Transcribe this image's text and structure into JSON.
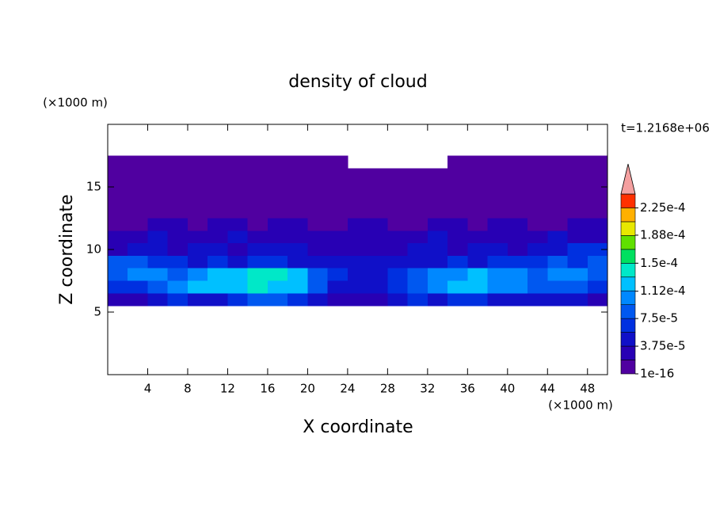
{
  "chart_data": {
    "type": "contour",
    "title": "density of cloud",
    "xlabel": "X coordinate",
    "ylabel": "Z coordinate",
    "xunit": "(×1000 m)",
    "yunit": "(×1000 m)",
    "annotation": "t=1.2168e+06",
    "xlim": [
      0,
      50
    ],
    "ylim": [
      0,
      20
    ],
    "xticks": [
      4,
      8,
      12,
      16,
      20,
      24,
      28,
      32,
      36,
      40,
      44,
      48
    ],
    "yticks": [
      5,
      10,
      15
    ],
    "x": [
      1,
      3,
      5,
      7,
      9,
      11,
      13,
      15,
      17,
      19,
      21,
      23,
      25,
      27,
      29,
      31,
      33,
      35,
      37,
      39,
      41,
      43,
      45,
      47,
      49
    ],
    "y": [
      17,
      16,
      15,
      14,
      13,
      12,
      11,
      10,
      9,
      8,
      7,
      6
    ],
    "z": [
      [
        5e-06,
        5e-06,
        5e-06,
        5e-06,
        5e-06,
        5e-06,
        5e-06,
        5e-06,
        5e-06,
        5e-06,
        5e-06,
        5e-06,
        null,
        null,
        null,
        null,
        null,
        5e-06,
        5e-06,
        5e-06,
        5e-06,
        5e-06,
        5e-06,
        5e-06,
        5e-06
      ],
      [
        5e-06,
        5e-06,
        5e-06,
        5e-06,
        5e-06,
        5e-06,
        5e-06,
        5e-06,
        5e-06,
        5e-06,
        5e-06,
        5e-06,
        5e-06,
        5e-06,
        5e-06,
        5e-06,
        5e-06,
        5e-06,
        5e-06,
        5e-06,
        5e-06,
        5e-06,
        5e-06,
        5e-06,
        5e-06
      ],
      [
        5e-06,
        5e-06,
        5e-06,
        5e-06,
        5e-06,
        5e-06,
        5e-06,
        5e-06,
        5e-06,
        5e-06,
        5e-06,
        5e-06,
        5e-06,
        5e-06,
        5e-06,
        5e-06,
        5e-06,
        5e-06,
        5e-06,
        5e-06,
        5e-06,
        5e-06,
        5e-06,
        5e-06,
        5e-06
      ],
      [
        5e-06,
        5e-06,
        5e-06,
        5e-06,
        5e-06,
        5e-06,
        5e-06,
        5e-06,
        5e-06,
        5e-06,
        5e-06,
        5e-06,
        5e-06,
        5e-06,
        5e-06,
        5e-06,
        5e-06,
        5e-06,
        5e-06,
        5e-06,
        5e-06,
        5e-06,
        5e-06,
        5e-06,
        5e-06
      ],
      [
        5e-06,
        1e-05,
        5e-06,
        5e-06,
        1e-05,
        5e-06,
        5e-06,
        1e-05,
        5e-06,
        5e-06,
        5e-06,
        1e-05,
        5e-06,
        5e-06,
        1e-05,
        5e-06,
        5e-06,
        5e-06,
        1e-05,
        5e-06,
        5e-06,
        1e-05,
        5e-06,
        5e-06,
        1e-05
      ],
      [
        1e-05,
        1e-05,
        2e-05,
        2e-05,
        1e-05,
        2e-05,
        2e-05,
        1e-05,
        2e-05,
        2e-05,
        1e-05,
        1e-05,
        2e-05,
        2e-05,
        1e-05,
        1e-05,
        2e-05,
        2e-05,
        1e-05,
        2e-05,
        2e-05,
        1e-05,
        1e-05,
        2e-05,
        2e-05
      ],
      [
        2.5e-05,
        2.5e-05,
        4e-05,
        2.5e-05,
        2.5e-05,
        2.5e-05,
        4e-05,
        2.5e-05,
        2.5e-05,
        2.5e-05,
        2.5e-05,
        2.5e-05,
        2.5e-05,
        2.5e-05,
        2.5e-05,
        2.5e-05,
        4e-05,
        2.5e-05,
        2.5e-05,
        2.5e-05,
        2.5e-05,
        2.5e-05,
        4e-05,
        2.5e-05,
        2.5e-05
      ],
      [
        3e-05,
        4e-05,
        4e-05,
        3e-05,
        4e-05,
        4e-05,
        3e-05,
        4e-05,
        4e-05,
        4e-05,
        3e-05,
        3e-05,
        3e-05,
        3e-05,
        3e-05,
        4e-05,
        4e-05,
        3e-05,
        4e-05,
        4e-05,
        3e-05,
        4e-05,
        4e-05,
        6e-05,
        6e-05
      ],
      [
        8e-05,
        9e-05,
        7e-05,
        6e-05,
        5e-05,
        6e-05,
        5e-05,
        6e-05,
        6e-05,
        5e-05,
        5e-05,
        4e-05,
        4e-05,
        4e-05,
        4e-05,
        5e-05,
        5e-05,
        6e-05,
        5e-05,
        6e-05,
        6e-05,
        7e-05,
        8e-05,
        7e-05,
        9e-05
      ],
      [
        9e-05,
        0.000105,
        0.0001,
        9e-05,
        0.00011,
        0.00012,
        0.00013,
        0.000145,
        0.000145,
        0.00012,
        8e-05,
        6e-05,
        5e-05,
        5e-05,
        6e-05,
        8e-05,
        0.0001,
        0.00011,
        0.000115,
        0.000105,
        0.0001,
        9e-05,
        0.0001,
        0.000105,
        9e-05
      ],
      [
        6e-05,
        7e-05,
        8e-05,
        0.0001,
        0.000115,
        0.000125,
        0.00013,
        0.000135,
        0.00013,
        0.00012,
        9e-05,
        5e-05,
        4e-05,
        5e-05,
        7e-05,
        9e-05,
        0.000105,
        0.000115,
        0.00012,
        0.00011,
        0.0001,
        9e-05,
        8e-05,
        8e-05,
        7e-05
      ],
      [
        2e-05,
        3e-05,
        5e-05,
        6e-05,
        5e-05,
        4e-05,
        6e-05,
        8e-05,
        8e-05,
        7e-05,
        5e-05,
        3e-05,
        2e-05,
        3e-05,
        4e-05,
        6e-05,
        5e-05,
        6e-05,
        6e-05,
        5e-05,
        4e-05,
        4e-05,
        5e-05,
        4e-05,
        3e-05
      ]
    ],
    "levels": [
      1e-16,
      1.875e-05,
      3.75e-05,
      5.625e-05,
      7.5e-05,
      9.375e-05,
      0.0001125,
      0.00013125,
      0.00015,
      0.00016875,
      0.0001875,
      0.00020625,
      0.000225,
      0.00024375
    ],
    "colors": [
      "#5000a0",
      "#2800b4",
      "#1010c8",
      "#0030e0",
      "#0058f0",
      "#0088ff",
      "#00c0ff",
      "#00e8c8",
      "#00e060",
      "#60e000",
      "#e8e800",
      "#ffb000",
      "#ff3000"
    ],
    "extend_color": "#f4a0a0",
    "colorbar_ticks": [
      1e-16,
      {
        "value": 3.75e-05,
        "label": "3.75e-5"
      },
      {
        "value": 7.5e-05,
        "label": "7.5e-5"
      },
      {
        "value": 0.000112,
        "label": "1.12e-4"
      },
      {
        "value": 0.00015,
        "label": "1.5e-4"
      },
      {
        "value": 0.000188,
        "label": "1.88e-4"
      },
      {
        "value": 0.000225,
        "label": "2.25e-4"
      }
    ]
  }
}
